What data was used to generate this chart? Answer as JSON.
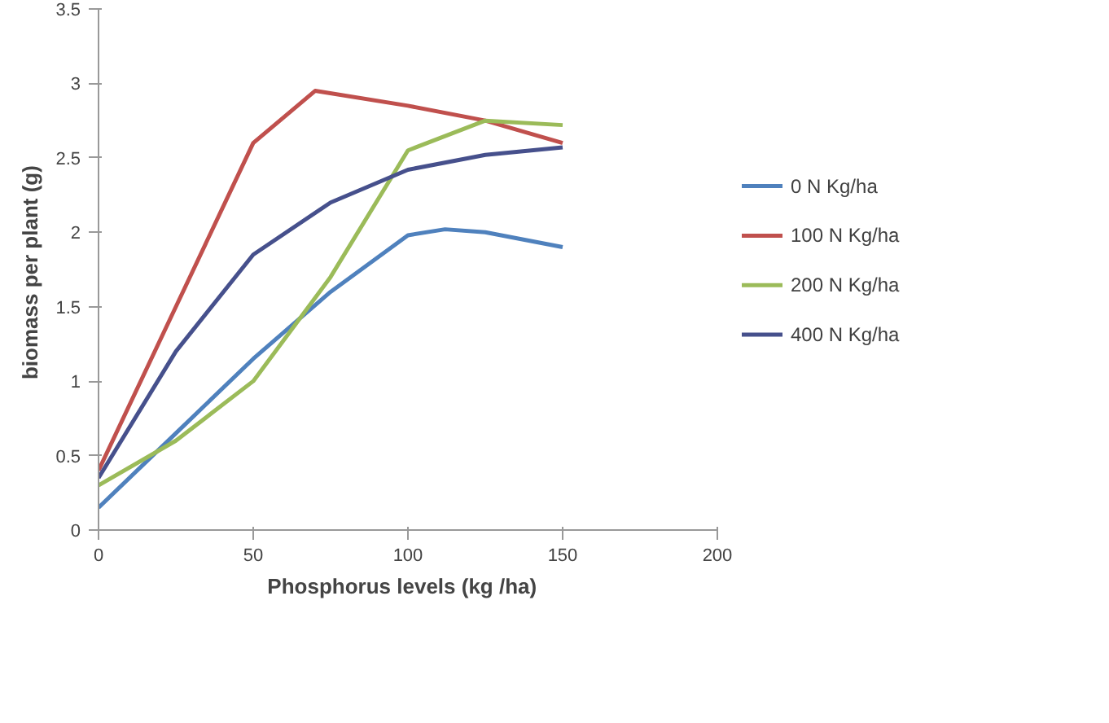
{
  "chart_data": {
    "type": "line",
    "xlabel": "Phosphorus  levels  (kg /ha)",
    "ylabel": "biomass per plant  (g)",
    "xlim": [
      0,
      200
    ],
    "xticks": [
      0,
      50,
      100,
      150,
      200
    ],
    "ylim": [
      0,
      3.5
    ],
    "yticks": [
      0,
      0.5,
      1,
      1.5,
      2,
      2.5,
      3,
      3.5
    ],
    "grid": false,
    "legend": "right",
    "marker": "none",
    "line_style": "solid",
    "series": [
      {
        "name": "0 N Kg/ha",
        "color": "#4f81bd",
        "x": [
          0,
          25,
          50,
          75,
          100,
          112,
          125,
          150
        ],
        "values": [
          0.15,
          0.65,
          1.15,
          1.6,
          1.98,
          2.02,
          2.0,
          1.9
        ]
      },
      {
        "name": "100  N  Kg/ha",
        "color": "#c0504d",
        "x": [
          0,
          25,
          50,
          70,
          100,
          125,
          150
        ],
        "values": [
          0.4,
          1.5,
          2.6,
          2.95,
          2.85,
          2.75,
          2.6
        ]
      },
      {
        "name": "200  N  Kg/ha",
        "color": "#9bbb59",
        "x": [
          0,
          25,
          50,
          75,
          100,
          125,
          150
        ],
        "values": [
          0.3,
          0.6,
          1.0,
          1.7,
          2.55,
          2.75,
          2.72
        ]
      },
      {
        "name": "400 N Kg/ha",
        "color": "#46508c",
        "x": [
          0,
          25,
          50,
          75,
          100,
          125,
          150
        ],
        "values": [
          0.35,
          1.2,
          1.85,
          2.2,
          2.42,
          2.52,
          2.57
        ]
      }
    ]
  }
}
